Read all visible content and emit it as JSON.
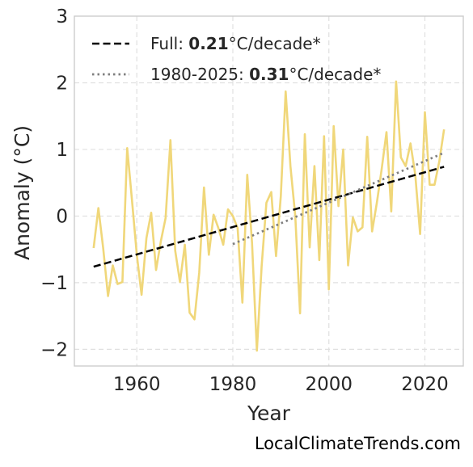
{
  "chart_data": {
    "type": "line",
    "xlabel": "Year",
    "ylabel": "Anomaly (°C)",
    "xlim": [
      1947,
      2028
    ],
    "ylim": [
      -2.25,
      3.0
    ],
    "x_ticks": [
      1960,
      1980,
      2000,
      2020
    ],
    "x_tick_labels": [
      "1960",
      "1980",
      "2000",
      "2020"
    ],
    "y_ticks": [
      -2,
      -1,
      0,
      1,
      2,
      3
    ],
    "y_tick_labels": [
      "−2",
      "−1",
      "0",
      "1",
      "2",
      "3"
    ],
    "grid": true,
    "legend_position": "top-left",
    "series": [
      {
        "style": "line",
        "color": "#f0d77a",
        "x": [
          1951,
          1952,
          1953,
          1954,
          1955,
          1956,
          1957,
          1958,
          1959,
          1960,
          1961,
          1962,
          1963,
          1964,
          1965,
          1966,
          1967,
          1968,
          1969,
          1970,
          1971,
          1972,
          1973,
          1974,
          1975,
          1976,
          1977,
          1978,
          1979,
          1980,
          1981,
          1982,
          1983,
          1984,
          1985,
          1986,
          1987,
          1988,
          1989,
          1990,
          1991,
          1992,
          1993,
          1994,
          1995,
          1996,
          1997,
          1998,
          1999,
          2000,
          2001,
          2002,
          2003,
          2004,
          2005,
          2006,
          2007,
          2008,
          2009,
          2010,
          2011,
          2012,
          2013,
          2014,
          2015,
          2016,
          2017,
          2018,
          2019,
          2020,
          2021,
          2022,
          2023,
          2024
        ],
        "y": [
          -0.48,
          0.12,
          -0.48,
          -1.2,
          -0.74,
          -1.02,
          -0.99,
          1.02,
          0.23,
          -0.58,
          -1.18,
          -0.33,
          0.05,
          -0.81,
          -0.38,
          -0.03,
          1.14,
          -0.52,
          -0.99,
          -0.43,
          -1.45,
          -1.55,
          -0.85,
          0.43,
          -0.58,
          0.02,
          -0.18,
          -0.43,
          0.1,
          0.0,
          -0.18,
          -1.3,
          0.62,
          -0.4,
          -2.02,
          -0.75,
          0.2,
          0.36,
          -0.6,
          0.3,
          1.87,
          0.75,
          0.0,
          -1.46,
          1.23,
          -0.47,
          0.75,
          -0.66,
          1.2,
          -1.1,
          1.35,
          0.15,
          1.0,
          -0.74,
          -0.02,
          -0.23,
          -0.17,
          1.19,
          -0.23,
          0.2,
          0.7,
          1.26,
          0.07,
          2.02,
          0.88,
          0.75,
          1.09,
          0.62,
          -0.27,
          1.56,
          0.47,
          0.47,
          0.82,
          1.3
        ]
      },
      {
        "name": "Full: 0.21°C/decade*",
        "style": "dashed",
        "color": "#000000",
        "x": [
          1951,
          2024
        ],
        "y": [
          -0.76,
          0.74
        ]
      },
      {
        "name": "1980-2025: 0.31°C/decade*",
        "style": "dotted",
        "color": "#7f7f7f",
        "x": [
          1980,
          2024
        ],
        "y": [
          -0.42,
          0.95
        ]
      }
    ],
    "legend": [
      {
        "prefix": "Full: ",
        "value": "0.21",
        "suffix": "°C/decade*",
        "style": "dashed",
        "color": "#000000"
      },
      {
        "prefix": "1980-2025: ",
        "value": "0.31",
        "suffix": "°C/decade*",
        "style": "dotted",
        "color": "#7f7f7f"
      }
    ]
  },
  "watermark": "LocalClimateTrends.com"
}
